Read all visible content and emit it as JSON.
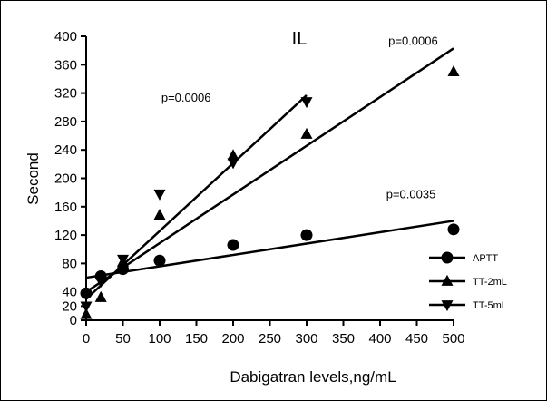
{
  "chart_data": {
    "type": "scatter",
    "title": "IL",
    "xlabel": "Dabigatran levels,ng/mL",
    "ylabel": "Second",
    "xlim": [
      0,
      500
    ],
    "ylim": [
      0,
      400
    ],
    "xticks": [
      0,
      50,
      100,
      150,
      200,
      250,
      300,
      350,
      400,
      450,
      500
    ],
    "yticks": [
      0,
      20,
      40,
      80,
      120,
      160,
      200,
      240,
      280,
      320,
      360,
      400
    ],
    "grid": false,
    "legend_position": "right",
    "series": [
      {
        "name": "APTT",
        "marker": "circle",
        "points": [
          [
            0,
            38
          ],
          [
            20,
            62
          ],
          [
            50,
            72
          ],
          [
            100,
            84
          ],
          [
            200,
            106
          ],
          [
            300,
            120
          ],
          [
            500,
            128
          ]
        ],
        "fit_line": [
          [
            0,
            60
          ],
          [
            500,
            140
          ]
        ]
      },
      {
        "name": "TT-2mL",
        "marker": "triangle-up",
        "points": [
          [
            0,
            8
          ],
          [
            20,
            32
          ],
          [
            50,
            82
          ],
          [
            100,
            148
          ],
          [
            200,
            232
          ],
          [
            300,
            262
          ],
          [
            500,
            350
          ]
        ],
        "fit_line": [
          [
            0,
            40
          ],
          [
            500,
            383
          ]
        ]
      },
      {
        "name": "TT-5mL",
        "marker": "triangle-down",
        "points": [
          [
            0,
            20
          ],
          [
            20,
            55
          ],
          [
            50,
            86
          ],
          [
            100,
            178
          ],
          [
            200,
            222
          ],
          [
            300,
            308
          ]
        ],
        "fit_line": [
          [
            0,
            30
          ],
          [
            300,
            317
          ]
        ]
      }
    ],
    "annotations": [
      {
        "text": "p=0.0006",
        "x": 445,
        "y": 388
      },
      {
        "text": "p=0.0006",
        "x": 136,
        "y": 308
      },
      {
        "text": "p=0.0035",
        "x": 442,
        "y": 172
      }
    ]
  }
}
